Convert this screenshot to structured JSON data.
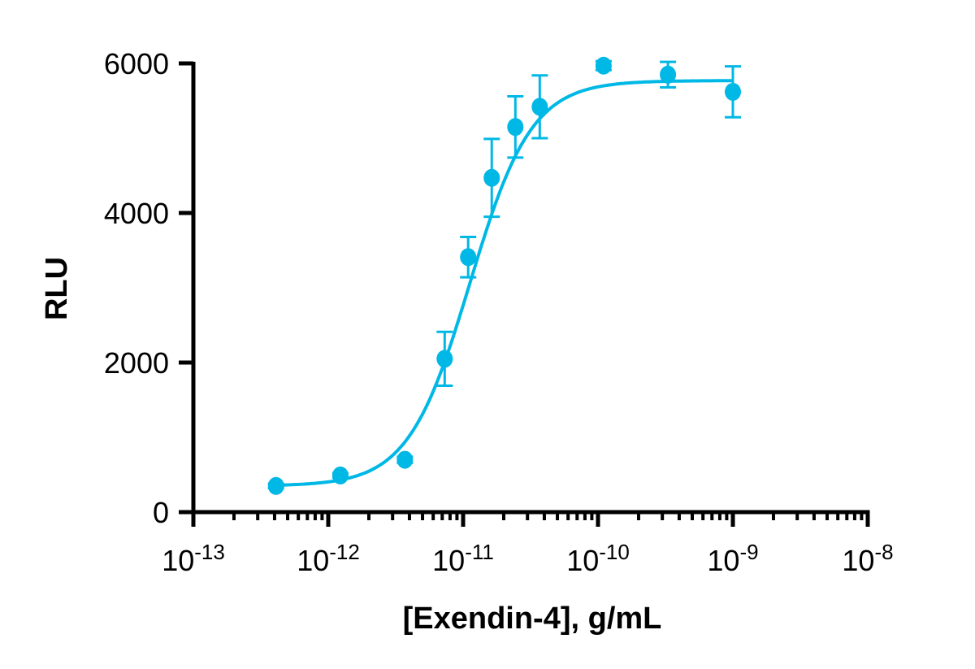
{
  "chart_data": {
    "type": "scatter",
    "xlabel": "[Exendin-4], g/mL",
    "ylabel": "RLU",
    "x_scale": "log",
    "xlim": [
      1e-13,
      1e-08
    ],
    "ylim": [
      0,
      6000
    ],
    "x_ticks": [
      {
        "value": 1e-13,
        "base": "10",
        "exp": "-13"
      },
      {
        "value": 1e-12,
        "base": "10",
        "exp": "-12"
      },
      {
        "value": 1e-11,
        "base": "10",
        "exp": "-11"
      },
      {
        "value": 1e-10,
        "base": "10",
        "exp": "-10"
      },
      {
        "value": 1e-09,
        "base": "10",
        "exp": "-9"
      },
      {
        "value": 1e-08,
        "base": "10",
        "exp": "-8"
      }
    ],
    "y_ticks": [
      "0",
      "2000",
      "4000",
      "6000"
    ],
    "grid": false,
    "color": "#00b8e6",
    "points": [
      {
        "x": 4.1e-13,
        "y": 350,
        "err": 30
      },
      {
        "x": 1.23e-12,
        "y": 490,
        "err": 30
      },
      {
        "x": 3.7e-12,
        "y": 700,
        "err": 40
      },
      {
        "x": 7.3e-12,
        "y": 2050,
        "err": 360
      },
      {
        "x": 1.09e-11,
        "y": 3410,
        "err": 270
      },
      {
        "x": 1.63e-11,
        "y": 4470,
        "err": 520
      },
      {
        "x": 2.44e-11,
        "y": 5150,
        "err": 410
      },
      {
        "x": 3.7e-11,
        "y": 5420,
        "err": 420
      },
      {
        "x": 1.1e-10,
        "y": 5970,
        "err": 60
      },
      {
        "x": 3.3e-10,
        "y": 5850,
        "err": 170
      },
      {
        "x": 1e-09,
        "y": 5620,
        "err": 340
      }
    ],
    "fit_curve": {
      "model": "4PL",
      "bottom": 350,
      "top": 5770,
      "logEC50": -10.95,
      "hill": 1.9,
      "x_range": [
        4.1e-13,
        1e-09
      ]
    }
  }
}
